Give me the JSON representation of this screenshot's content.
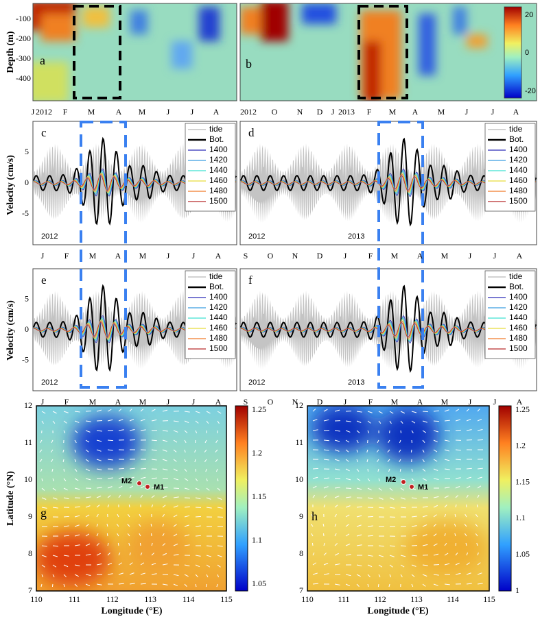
{
  "depth": {
    "ylabel": "Depth (m)",
    "yticks": [
      "-100",
      "-200",
      "-300",
      "-400"
    ],
    "a": {
      "label": "a",
      "xticks": [
        "J",
        "2012",
        "F",
        "M",
        "A",
        "M",
        "J",
        "J",
        "A"
      ]
    },
    "b": {
      "label": "b",
      "xticks": [
        "2012",
        "O",
        "N",
        "D",
        "J",
        "2013",
        "F",
        "M",
        "A",
        "M",
        "J",
        "J",
        "A"
      ]
    },
    "colorbar": [
      "20",
      "0",
      "-20"
    ]
  },
  "velocity": {
    "ylabel": "Velocity (cm/s)",
    "yticks": [
      "5",
      "0",
      "-5"
    ],
    "legend": [
      {
        "name": "tide",
        "color": "#b8b8b8"
      },
      {
        "name": "Bot.",
        "color": "#000000"
      },
      {
        "name": "1400",
        "color": "#2b2bb8"
      },
      {
        "name": "1420",
        "color": "#3a9ee0"
      },
      {
        "name": "1440",
        "color": "#3ee0d0"
      },
      {
        "name": "1460",
        "color": "#e6dc3a"
      },
      {
        "name": "1480",
        "color": "#f07a2a"
      },
      {
        "name": "1500",
        "color": "#b82a2a"
      }
    ],
    "c": {
      "label": "c",
      "years": [
        "2012"
      ],
      "xticks": [
        "J",
        "F",
        "M",
        "A",
        "M",
        "J",
        "J",
        "A"
      ]
    },
    "d": {
      "label": "d",
      "years": [
        "2012",
        "2013"
      ],
      "xticks": [
        "S",
        "O",
        "N",
        "D",
        "J",
        "F",
        "M",
        "A",
        "M",
        "J",
        "J",
        "A"
      ]
    },
    "e": {
      "label": "e",
      "years": [
        "2012"
      ],
      "xticks": [
        "J",
        "F",
        "M",
        "A",
        "M",
        "J",
        "J",
        "A"
      ]
    },
    "f": {
      "label": "f",
      "years": [
        "2012",
        "2013"
      ],
      "xticks": [
        "S",
        "O",
        "N",
        "D",
        "J",
        "F",
        "M",
        "A",
        "M",
        "J",
        "J",
        "A"
      ]
    }
  },
  "maps": {
    "xlabel": "Longitude (°E)",
    "ylabel": "Latitude (°N)",
    "xticks": [
      "110",
      "111",
      "112",
      "113",
      "114",
      "115"
    ],
    "yticks": [
      "7",
      "8",
      "9",
      "10",
      "11",
      "12"
    ],
    "stations": [
      "M2",
      "M1"
    ],
    "g": {
      "label": "g",
      "colorbar": [
        "1.25",
        "1.2",
        "1.15",
        "1.1",
        "1.05"
      ]
    },
    "h": {
      "label": "h",
      "colorbar": [
        "1.25",
        "1.2",
        "1.15",
        "1.1",
        "1.05",
        "1"
      ]
    }
  }
}
